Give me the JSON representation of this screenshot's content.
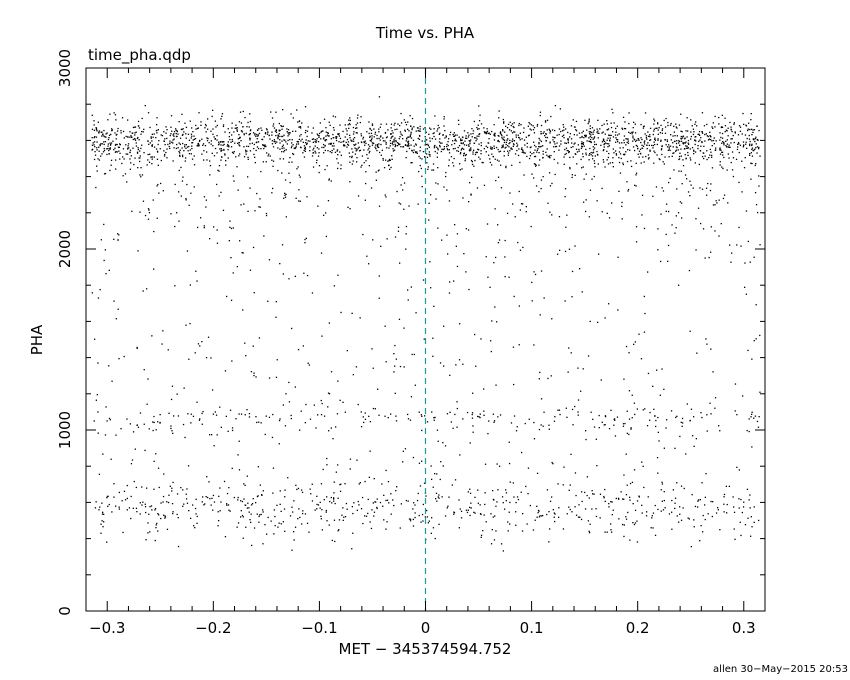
{
  "chart_data": {
    "type": "scatter",
    "title": "Time vs. PHA",
    "subtitle": "time_pha.qdp",
    "xlabel": "MET − 345374594.752",
    "ylabel": "PHA",
    "xlim": [
      -0.32,
      0.32
    ],
    "ylim": [
      0,
      3000
    ],
    "x_ticks": [
      {
        "value": -0.3,
        "label": "−0.3"
      },
      {
        "value": -0.2,
        "label": "−0.2"
      },
      {
        "value": -0.1,
        "label": "−0.1"
      },
      {
        "value": 0,
        "label": "0"
      },
      {
        "value": 0.1,
        "label": "0.1"
      },
      {
        "value": 0.2,
        "label": "0.2"
      },
      {
        "value": 0.3,
        "label": "0.3"
      }
    ],
    "y_ticks": [
      {
        "value": 0,
        "label": "0"
      },
      {
        "value": 1000,
        "label": "1000"
      },
      {
        "value": 2000,
        "label": "2000"
      },
      {
        "value": 3000,
        "label": "3000"
      }
    ],
    "vline": {
      "x": 0,
      "color": "#1a9a9a",
      "style": "dashed"
    },
    "grid": false,
    "point_color": "#000000",
    "series": [
      {
        "components": [
          {
            "n": 2200,
            "y_mean": 2600,
            "y_sd": 65,
            "y_min": 2400,
            "y_max": 2850
          },
          {
            "n": 320,
            "y_mean": 2350,
            "y_sd": 130,
            "y_min": 2050,
            "y_max": 2600
          },
          {
            "n": 260,
            "y_mean": 1900,
            "y_sd": 300,
            "y_min": 1300,
            "y_max": 2450
          },
          {
            "n": 130,
            "y_mean": 1300,
            "y_sd": 180,
            "y_min": 950,
            "y_max": 1700
          },
          {
            "n": 240,
            "y_mean": 1070,
            "y_sd": 45,
            "y_min": 950,
            "y_max": 1200
          },
          {
            "n": 130,
            "y_mean": 800,
            "y_sd": 120,
            "y_min": 600,
            "y_max": 1000
          },
          {
            "n": 620,
            "y_mean": 560,
            "y_sd": 80,
            "y_min": 330,
            "y_max": 720
          }
        ],
        "x_range": [
          -0.315,
          0.315
        ]
      }
    ]
  },
  "footer": "allen 30−May−2015 20:53"
}
